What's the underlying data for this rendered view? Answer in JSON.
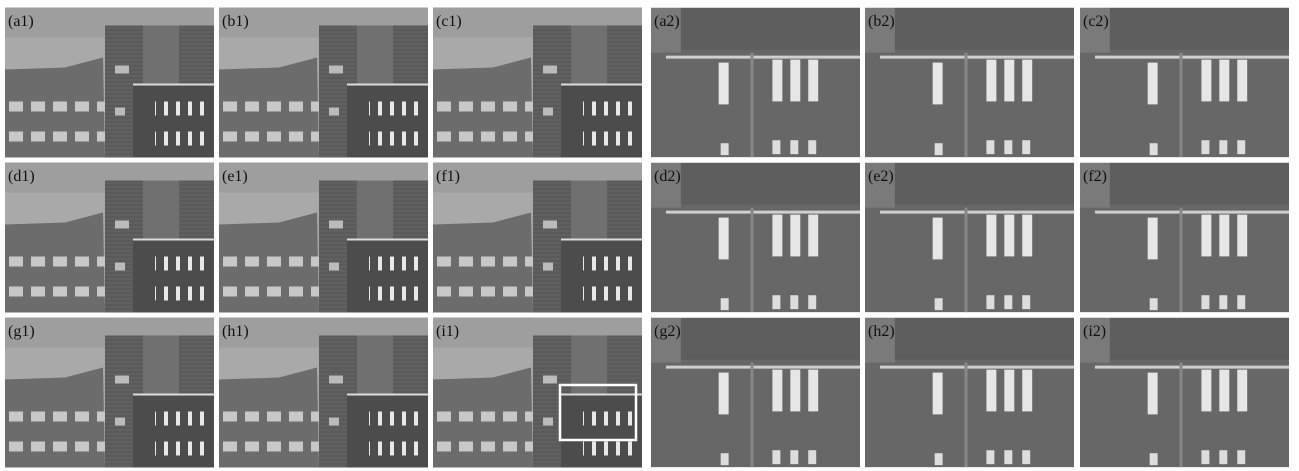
{
  "figure": {
    "left_panels": [
      "(a1)",
      "(b1)",
      "(c1)",
      "(d1)",
      "(e1)",
      "(f1)",
      "(g1)",
      "(h1)",
      "(i1)"
    ],
    "right_panels": [
      "(a2)",
      "(b2)",
      "(c2)",
      "(d2)",
      "(e2)",
      "(f2)",
      "(g2)",
      "(h2)",
      "(i2)"
    ]
  }
}
